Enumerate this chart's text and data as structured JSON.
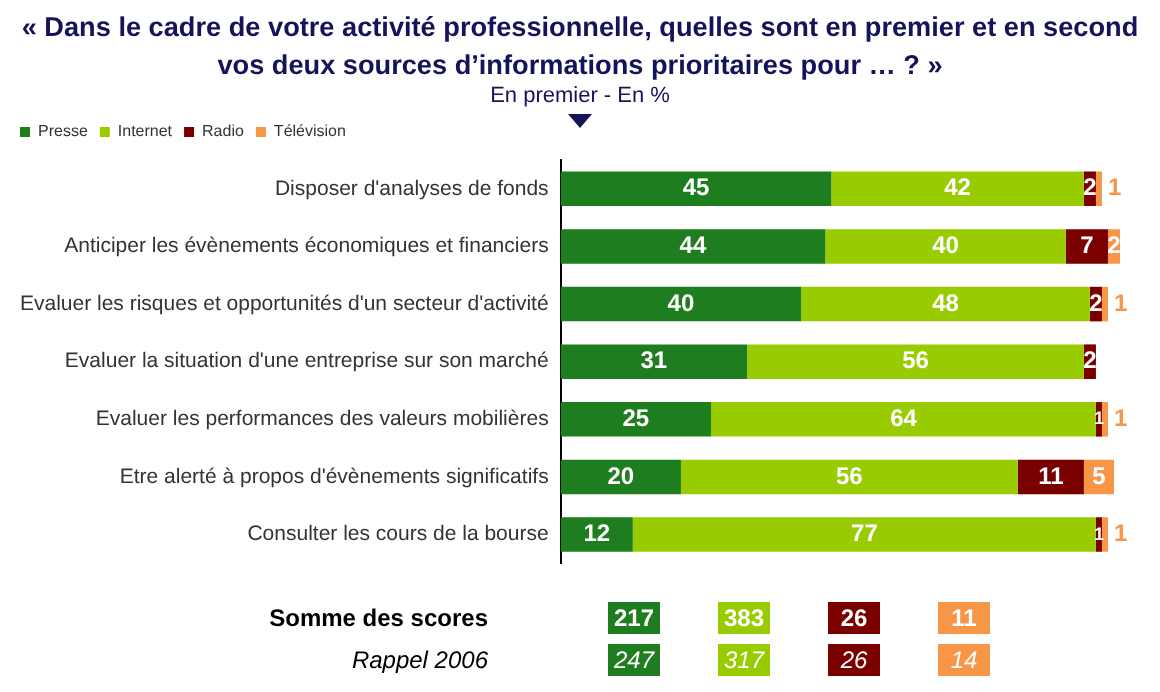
{
  "chart_data": {
    "type": "bar",
    "orientation": "horizontal",
    "stacked": true,
    "data_labels": true,
    "legend": "top left",
    "title": "« Dans le cadre de votre activité professionnelle, quelles sont en premier et en second vos deux sources d’informations prioritaires pour …  ? »",
    "subtitle": "En premier - En %",
    "categories": [
      "Disposer d'analyses de fonds",
      "Anticiper les évènements économiques et financiers",
      "Evaluer les risques et opportunités d'un secteur d'activité",
      "Evaluer la situation d'une entreprise sur son marché",
      "Evaluer les performances des valeurs mobilières",
      "Etre alerté à propos d'évènements significatifs",
      "Consulter les cours de la bourse"
    ],
    "series": [
      {
        "name": "Presse",
        "color": "#1e7d1e",
        "values": [
          45,
          44,
          40,
          31,
          25,
          20,
          12
        ]
      },
      {
        "name": "Internet",
        "color": "#99cc00",
        "values": [
          42,
          40,
          48,
          56,
          64,
          56,
          77
        ]
      },
      {
        "name": "Radio",
        "color": "#7a0000",
        "values": [
          2,
          7,
          2,
          2,
          1,
          11,
          1
        ]
      },
      {
        "name": "Télévision",
        "color": "#f79646",
        "values": [
          1,
          2,
          1,
          null,
          1,
          5,
          1
        ]
      }
    ],
    "annotations": [
      "Somme des scores",
      "217",
      "383",
      "26",
      "11",
      "Rappel 2006",
      "247",
      "317",
      "26",
      "14"
    ]
  }
}
